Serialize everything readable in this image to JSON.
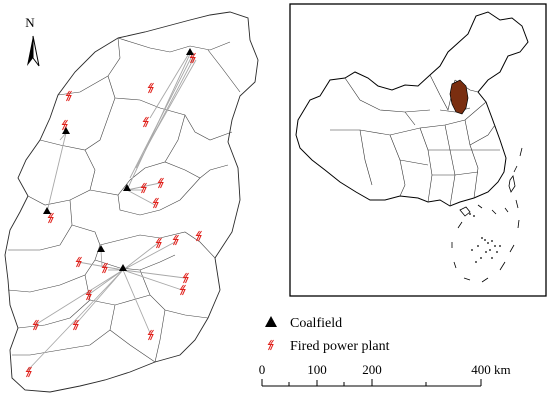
{
  "north_arrow": {
    "label": "N"
  },
  "legend": {
    "coalfield": {
      "label": "Coalfield",
      "icon": "triangle-icon"
    },
    "power_plant": {
      "label": "Fired power plant",
      "icon": "lightning-icon"
    }
  },
  "scale_bar": {
    "ticks": [
      "0",
      "100",
      "200",
      "400"
    ],
    "unit": "km"
  },
  "colors": {
    "province_highlight": "#7a2e10",
    "plant_symbol": "#e0201a",
    "link_line": "#a8a8a8",
    "boundary": "#2a2a2a"
  }
}
